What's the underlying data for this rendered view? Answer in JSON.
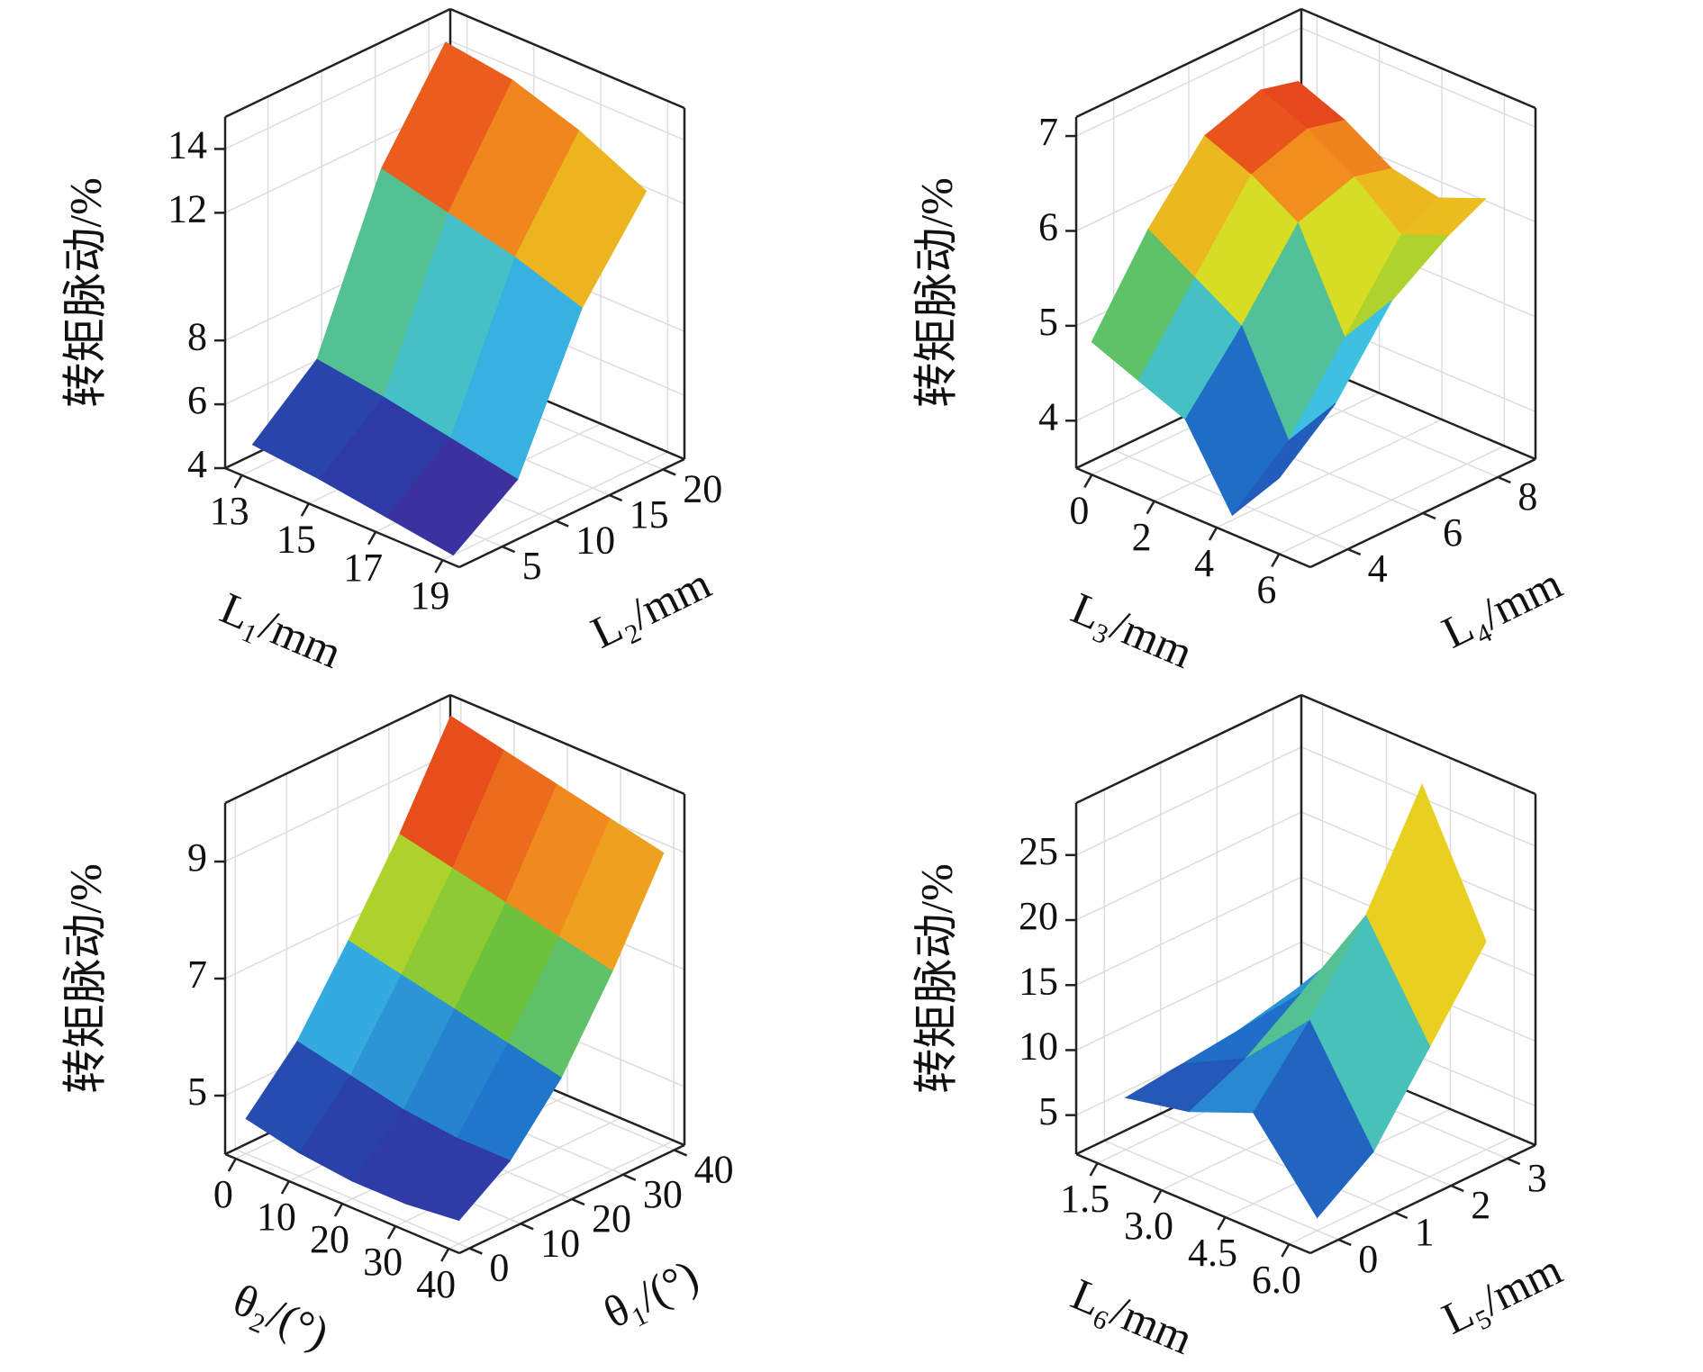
{
  "chart_data": [
    {
      "type": "surface",
      "xlabel": "L₁/mm",
      "ylabel": "L₂/mm",
      "zlabel": "转矩脉动/%",
      "x": [
        13,
        15,
        17,
        19
      ],
      "y": [
        2,
        8,
        14,
        20
      ],
      "z": [
        [
          4.8,
          6.5,
          11.5,
          14.5
        ],
        [
          4.6,
          6.2,
          11,
          14.2
        ],
        [
          4.3,
          5.8,
          10.5,
          13.5
        ],
        [
          4.0,
          5.4,
          9.8,
          12.5
        ]
      ],
      "xlim": [
        12.5,
        19.5
      ],
      "ylim": [
        1,
        22
      ],
      "zlim": [
        4,
        15
      ],
      "xticks": [
        13,
        15,
        17,
        19
      ],
      "yticks": [
        5,
        10,
        15,
        20
      ],
      "zticks": [
        4,
        6,
        8,
        12,
        14
      ],
      "grid": true,
      "colormap": [
        "#5b1a8f",
        "#2a3fa8",
        "#1f70c8",
        "#3cc0e6",
        "#6cc23a",
        "#e8e020",
        "#f08a1e",
        "#e01a1a",
        "#6b0c0c"
      ]
    },
    {
      "type": "surface",
      "xlabel": "L₃/mm",
      "ylabel": "L₄/mm",
      "zlabel": "转矩脉动/%",
      "x": [
        0,
        1.5,
        3,
        4.5,
        6
      ],
      "y": [
        3,
        4.5,
        6,
        7.5,
        8.5
      ],
      "z": [
        [
          4.9,
          5.8,
          6.5,
          6.7,
          6.6
        ],
        [
          4.7,
          5.5,
          6.3,
          6.5,
          6.4
        ],
        [
          4.5,
          5.2,
          6.0,
          6.2,
          6.1
        ],
        [
          3.7,
          4.2,
          5.0,
          5.8,
          6.0
        ],
        [
          4.3,
          4.8,
          5.6,
          6.0,
          6.2
        ]
      ],
      "xlim": [
        -0.5,
        7
      ],
      "ylim": [
        3,
        9
      ],
      "zlim": [
        3.5,
        7.2
      ],
      "xticks": [
        0,
        2,
        4,
        6
      ],
      "yticks": [
        4,
        6,
        8
      ],
      "zticks": [
        4,
        5,
        6,
        7
      ],
      "grid": true,
      "colormap": [
        "#5b1a8f",
        "#2a3fa8",
        "#1f70c8",
        "#3cc0e6",
        "#6cc23a",
        "#e8e020",
        "#f08a1e",
        "#e01a1a",
        "#6b0c0c"
      ]
    },
    {
      "type": "surface",
      "xlabel": "θ₂/(°)",
      "ylabel": "θ₁/(°)",
      "zlabel": "转矩脉动/%",
      "x": [
        0,
        10,
        20,
        30,
        40
      ],
      "y": [
        0,
        10,
        20,
        30,
        40
      ],
      "z": [
        [
          4.6,
          5.5,
          6.8,
          8.2,
          9.8
        ],
        [
          4.4,
          5.3,
          6.6,
          8.0,
          9.6
        ],
        [
          4.3,
          5.1,
          6.4,
          7.8,
          9.4
        ],
        [
          4.3,
          5.0,
          6.2,
          7.6,
          9.2
        ],
        [
          4.4,
          5.0,
          6.0,
          7.4,
          9.0
        ]
      ],
      "xlim": [
        -2,
        42
      ],
      "ylim": [
        -2,
        42
      ],
      "zlim": [
        4,
        10
      ],
      "xticks": [
        0,
        10,
        20,
        30,
        40
      ],
      "yticks": [
        0,
        10,
        20,
        30,
        40
      ],
      "zticks": [
        5,
        7,
        9
      ],
      "grid": true,
      "colormap": [
        "#5b1a8f",
        "#2a3fa8",
        "#1f70c8",
        "#3cc0e6",
        "#6cc23a",
        "#e8e020",
        "#f08a1e",
        "#e01a1a",
        "#6b0c0c"
      ]
    },
    {
      "type": "surface",
      "xlabel": "L₆/mm",
      "ylabel": "L₅/mm",
      "zlabel": "转矩脉动/%",
      "x": [
        1.5,
        3,
        4.5,
        6
      ],
      "y": [
        0,
        1,
        2,
        3
      ],
      "z": [
        [
          6,
          6.5,
          7,
          8
        ],
        [
          7,
          9,
          12,
          14
        ],
        [
          9,
          14,
          20,
          28
        ],
        [
          3,
          6,
          12,
          18
        ]
      ],
      "xlim": [
        1,
        6.5
      ],
      "ylim": [
        -0.5,
        3.5
      ],
      "zlim": [
        2,
        29
      ],
      "xticks": [
        1.5,
        {
          "value": 3,
          "label": "3.0"
        },
        4.5,
        {
          "value": 6,
          "label": "6.0"
        }
      ],
      "yticks": [
        0,
        1,
        2,
        3
      ],
      "zticks": [
        5,
        10,
        15,
        20,
        25
      ],
      "grid": true,
      "colormap": [
        "#5b1a8f",
        "#2a3fa8",
        "#1f70c8",
        "#3cc0e6",
        "#6cc23a",
        "#e8e020",
        "#f08a1e",
        "#e01a1a",
        "#6b0c0c"
      ]
    }
  ]
}
